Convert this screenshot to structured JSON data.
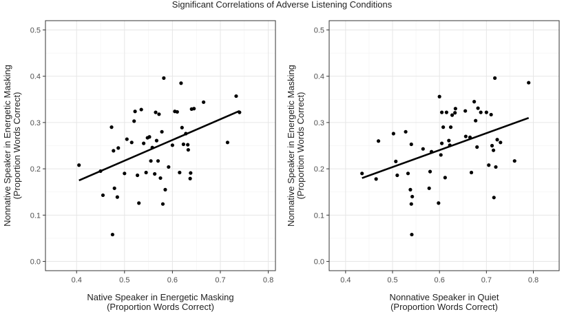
{
  "title": "Significant Correlations of Adverse Listening Conditions",
  "chart_data": [
    {
      "type": "scatter",
      "xlabel_line1": "Native Speaker in Energetic Masking",
      "xlabel_line2": "(Proportion Words Correct)",
      "ylabel_line1": "Nonnative Speaker in Energetic Masking",
      "ylabel_line2": "(Proportion Words Correct)",
      "xlim": [
        0.335,
        0.815
      ],
      "ylim": [
        -0.02,
        0.52
      ],
      "x_ticks": [
        "0.4",
        "0.5",
        "0.6",
        "0.7",
        "0.8"
      ],
      "y_ticks": [
        "0.0",
        "0.1",
        "0.2",
        "0.3",
        "0.4",
        "0.5"
      ],
      "grid": true,
      "trend_line": {
        "x": [
          0.405,
          0.74
        ],
        "y": [
          0.175,
          0.325
        ]
      },
      "points": [
        [
          0.405,
          0.208
        ],
        [
          0.45,
          0.195
        ],
        [
          0.455,
          0.143
        ],
        [
          0.473,
          0.29
        ],
        [
          0.475,
          0.058
        ],
        [
          0.477,
          0.239
        ],
        [
          0.479,
          0.158
        ],
        [
          0.485,
          0.139
        ],
        [
          0.487,
          0.245
        ],
        [
          0.5,
          0.19
        ],
        [
          0.505,
          0.264
        ],
        [
          0.515,
          0.257
        ],
        [
          0.52,
          0.303
        ],
        [
          0.522,
          0.324
        ],
        [
          0.527,
          0.186
        ],
        [
          0.53,
          0.126
        ],
        [
          0.535,
          0.328
        ],
        [
          0.54,
          0.255
        ],
        [
          0.545,
          0.192
        ],
        [
          0.548,
          0.267
        ],
        [
          0.552,
          0.269
        ],
        [
          0.555,
          0.217
        ],
        [
          0.558,
          0.246
        ],
        [
          0.563,
          0.189
        ],
        [
          0.565,
          0.322
        ],
        [
          0.567,
          0.261
        ],
        [
          0.57,
          0.217
        ],
        [
          0.572,
          0.318
        ],
        [
          0.575,
          0.18
        ],
        [
          0.578,
          0.28
        ],
        [
          0.58,
          0.124
        ],
        [
          0.582,
          0.396
        ],
        [
          0.585,
          0.155
        ],
        [
          0.592,
          0.204
        ],
        [
          0.6,
          0.251
        ],
        [
          0.605,
          0.324
        ],
        [
          0.61,
          0.323
        ],
        [
          0.615,
          0.192
        ],
        [
          0.618,
          0.385
        ],
        [
          0.62,
          0.289
        ],
        [
          0.623,
          0.253
        ],
        [
          0.628,
          0.276
        ],
        [
          0.632,
          0.252
        ],
        [
          0.633,
          0.241
        ],
        [
          0.637,
          0.179
        ],
        [
          0.638,
          0.191
        ],
        [
          0.64,
          0.329
        ],
        [
          0.645,
          0.33
        ],
        [
          0.665,
          0.344
        ],
        [
          0.715,
          0.257
        ],
        [
          0.733,
          0.357
        ],
        [
          0.74,
          0.322
        ]
      ]
    },
    {
      "type": "scatter",
      "xlabel_line1": "Nonnative Speaker in Quiet",
      "xlabel_line2": "(Proportion Words Correct)",
      "ylabel_line1": "Nonnative Speaker in Energetic Masking",
      "ylabel_line2": "(Proportion Words Correct)",
      "xlim": [
        0.365,
        0.855
      ],
      "ylim": [
        -0.02,
        0.52
      ],
      "x_ticks": [
        "0.4",
        "0.5",
        "0.6",
        "0.7",
        "0.8"
      ],
      "y_ticks": [
        "0.0",
        "0.1",
        "0.2",
        "0.3",
        "0.4",
        "0.5"
      ],
      "grid": true,
      "trend_line": {
        "x": [
          0.435,
          0.79
        ],
        "y": [
          0.18,
          0.31
        ]
      },
      "points": [
        [
          0.435,
          0.19
        ],
        [
          0.465,
          0.178
        ],
        [
          0.47,
          0.26
        ],
        [
          0.502,
          0.276
        ],
        [
          0.507,
          0.216
        ],
        [
          0.51,
          0.186
        ],
        [
          0.528,
          0.28
        ],
        [
          0.533,
          0.19
        ],
        [
          0.538,
          0.155
        ],
        [
          0.54,
          0.253
        ],
        [
          0.54,
          0.124
        ],
        [
          0.541,
          0.058
        ],
        [
          0.542,
          0.14
        ],
        [
          0.565,
          0.243
        ],
        [
          0.578,
          0.158
        ],
        [
          0.58,
          0.194
        ],
        [
          0.583,
          0.237
        ],
        [
          0.598,
          0.126
        ],
        [
          0.6,
          0.356
        ],
        [
          0.603,
          0.23
        ],
        [
          0.605,
          0.322
        ],
        [
          0.605,
          0.255
        ],
        [
          0.608,
          0.29
        ],
        [
          0.612,
          0.181
        ],
        [
          0.615,
          0.322
        ],
        [
          0.62,
          0.261
        ],
        [
          0.622,
          0.251
        ],
        [
          0.624,
          0.29
        ],
        [
          0.627,
          0.316
        ],
        [
          0.633,
          0.321
        ],
        [
          0.634,
          0.33
        ],
        [
          0.655,
          0.325
        ],
        [
          0.656,
          0.27
        ],
        [
          0.665,
          0.268
        ],
        [
          0.668,
          0.192
        ],
        [
          0.674,
          0.345
        ],
        [
          0.677,
          0.304
        ],
        [
          0.68,
          0.247
        ],
        [
          0.682,
          0.331
        ],
        [
          0.688,
          0.322
        ],
        [
          0.7,
          0.322
        ],
        [
          0.705,
          0.208
        ],
        [
          0.71,
          0.317
        ],
        [
          0.712,
          0.25
        ],
        [
          0.715,
          0.24
        ],
        [
          0.716,
          0.138
        ],
        [
          0.718,
          0.396
        ],
        [
          0.72,
          0.204
        ],
        [
          0.723,
          0.263
        ],
        [
          0.73,
          0.257
        ],
        [
          0.76,
          0.217
        ],
        [
          0.79,
          0.386
        ]
      ]
    }
  ]
}
